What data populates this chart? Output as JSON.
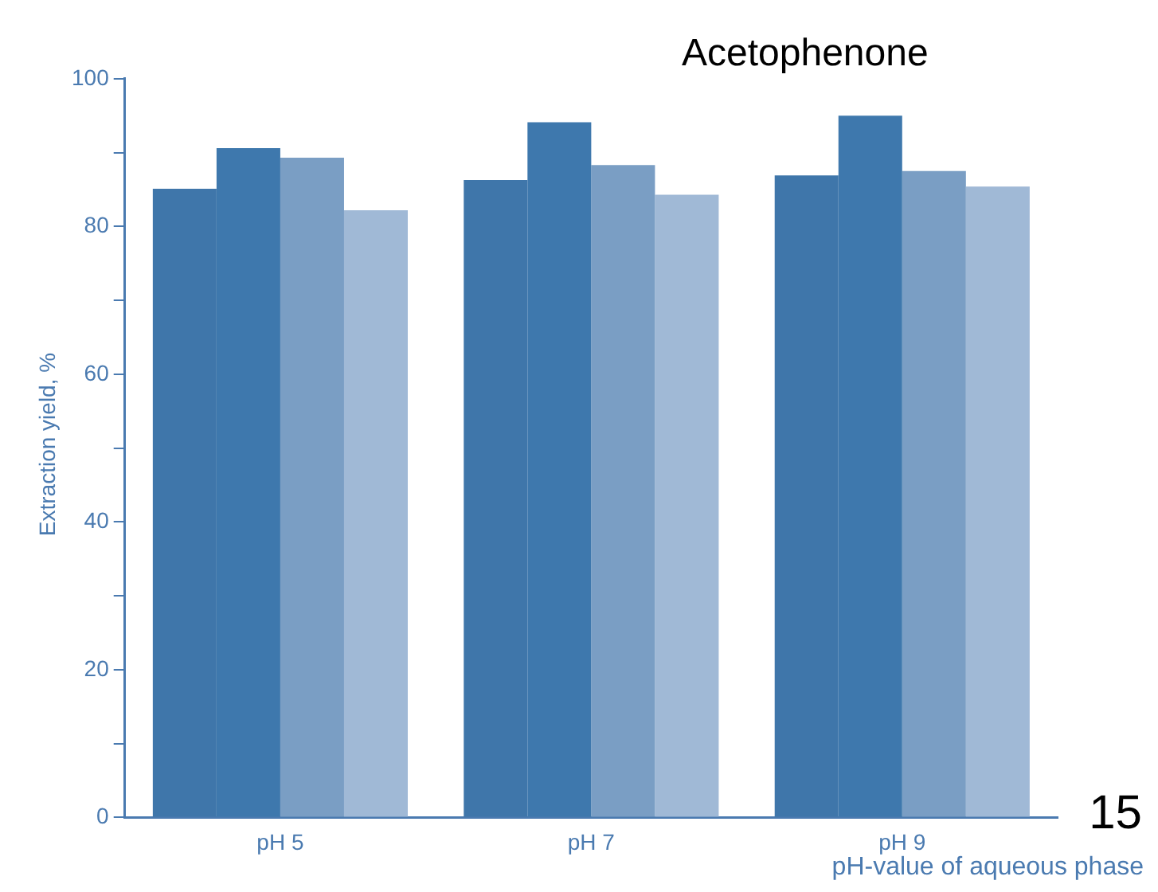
{
  "chart_data": {
    "type": "bar",
    "title": "Acetophenone",
    "xlabel": "pH-value of aqueous phase",
    "ylabel": "Extraction yield, %",
    "categories": [
      "pH 5",
      "pH 7",
      "pH 9"
    ],
    "series": [
      {
        "color": "#3f76aa",
        "values": [
          85.1,
          86.3,
          86.9
        ]
      },
      {
        "color": "#3e78ad",
        "values": [
          90.6,
          94.1,
          95.0
        ]
      },
      {
        "color": "#7a9ec4",
        "values": [
          89.3,
          88.3,
          87.5
        ]
      },
      {
        "color": "#a0b9d6",
        "values": [
          82.2,
          84.3,
          85.4
        ]
      }
    ],
    "ylim": [
      0,
      100
    ],
    "yticks": [
      0,
      {
        "value": 10,
        "label": null
      },
      20,
      {
        "value": 30,
        "label": null
      },
      40,
      {
        "value": 50,
        "label": null
      },
      60,
      {
        "value": 70,
        "label": null
      },
      80,
      {
        "value": 90,
        "label": null
      },
      100
    ],
    "grid": false,
    "legend": false,
    "annotations": [
      "15"
    ]
  }
}
